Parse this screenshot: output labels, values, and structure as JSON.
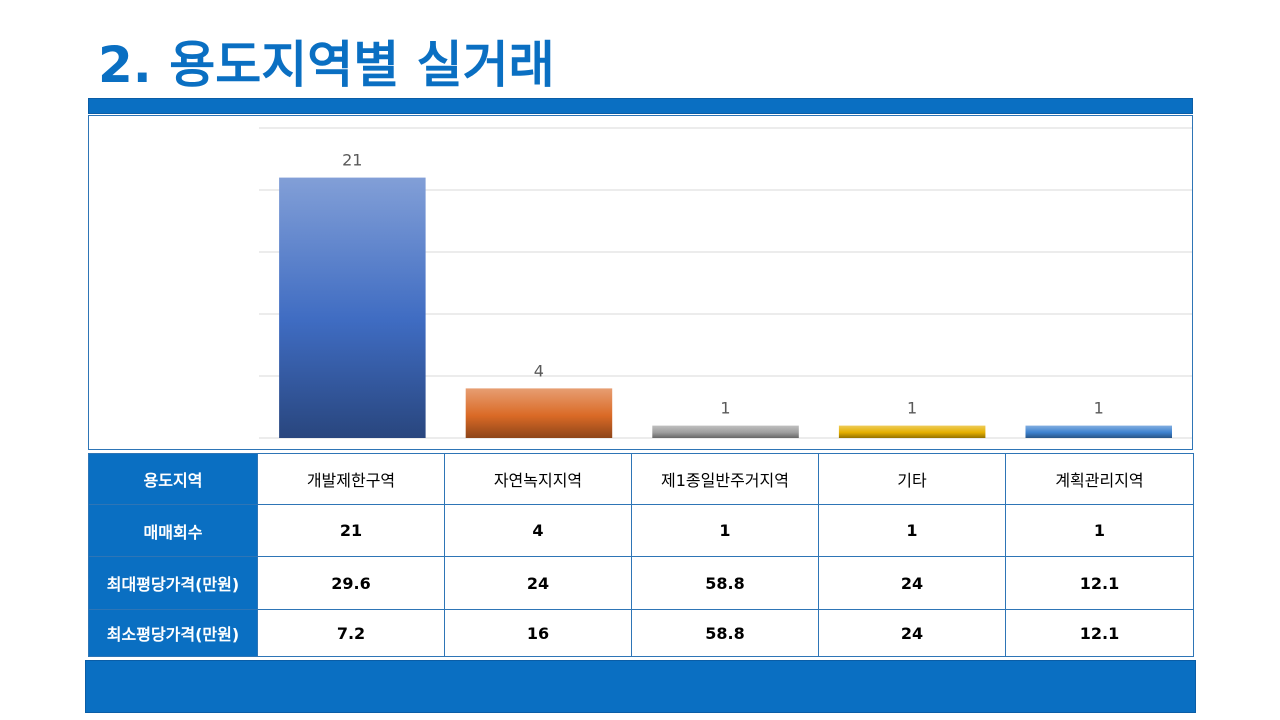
{
  "title": "2. 용도지역별 실거래",
  "chart_data": {
    "type": "bar",
    "categories": [
      "개발제한구역",
      "자연녹지지역",
      "제1종일반주거지역",
      "기타",
      "계획관리지역"
    ],
    "values": [
      21,
      4,
      1,
      1,
      1
    ],
    "ylim": [
      0,
      25
    ],
    "grid": true,
    "colors": [
      "#3F6CC2",
      "#DA6A26",
      "#9E9E9E",
      "#E5B000",
      "#3E82CF"
    ],
    "data_labels": [
      "21",
      "4",
      "1",
      "1",
      "1"
    ]
  },
  "table": {
    "row_headers": [
      "용도지역",
      "매매회수",
      "최대평당가격(만원)",
      "최소평당가격(만원)"
    ],
    "columns": [
      "개발제한구역",
      "자연녹지지역",
      "제1종일반주거지역",
      "기타",
      "계획관리지역"
    ],
    "rows": [
      [
        "21",
        "4",
        "1",
        "1",
        "1"
      ],
      [
        "29.6",
        "24",
        "58.8",
        "24",
        "12.1"
      ],
      [
        "7.2",
        "16",
        "58.8",
        "24",
        "12.1"
      ]
    ]
  }
}
